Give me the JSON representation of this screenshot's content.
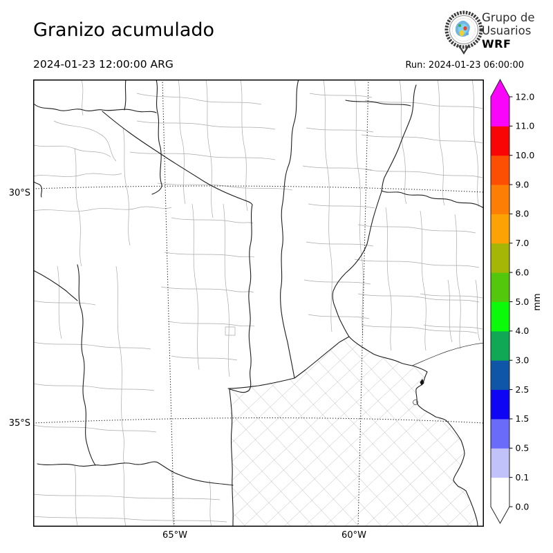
{
  "header": {
    "title": "Granizo acumulado",
    "datetime": "2024-01-23 12:00:00 ARG",
    "run": "Run: 2024-01-23 06:00:00"
  },
  "logo": {
    "line1": "Grupo de",
    "line2": "Usuarios",
    "line3": "WRF",
    "emblem": "globe-weather-seal-icon"
  },
  "map": {
    "region": "central-eastern Argentina with province and department boundaries",
    "shading": "none (entire domain at 0.0 mm)",
    "y_axis_labels": {
      "lat30": "30°S",
      "lat35": "35°S"
    },
    "x_axis_labels": {
      "lon65": "65°W",
      "lon60": "60°W"
    },
    "gridline_style": "dotted"
  },
  "colorbar": {
    "unit": "mm",
    "levels": [
      "0.0",
      "0.1",
      "0.5",
      "1.5",
      "2.5",
      "3.0",
      "4.0",
      "5.0",
      "6.0",
      "7.0",
      "8.0",
      "9.0",
      "10.0",
      "11.0",
      "12.0"
    ],
    "colors": [
      "#ffffff",
      "#c2c2fa",
      "#6b6bf9",
      "#0f05f5",
      "#0f56a8",
      "#10a854",
      "#0afa0a",
      "#52c70c",
      "#a6b607",
      "#fca204",
      "#fc7e04",
      "#fc4f04",
      "#f90505",
      "#f905f9"
    ],
    "over_color": "#f905f9",
    "under_color": "#ffffff",
    "outline_color": "#222222"
  },
  "chart_data": {
    "type": "heatmap",
    "title": "Granizo acumulado",
    "valid_time": "2024-01-23 12:00:00 ARG",
    "model_run": "2024-01-23 06:00:00",
    "units": "mm",
    "scale_levels": [
      0.0,
      0.1,
      0.5,
      1.5,
      2.5,
      3.0,
      4.0,
      5.0,
      6.0,
      7.0,
      8.0,
      9.0,
      10.0,
      11.0,
      12.0
    ],
    "x_ticks": [
      "65°W",
      "60°W"
    ],
    "y_ticks": [
      "30°S",
      "35°S"
    ],
    "values": "all grid points at 0.0 mm (no shaded hail accumulation visible)"
  }
}
